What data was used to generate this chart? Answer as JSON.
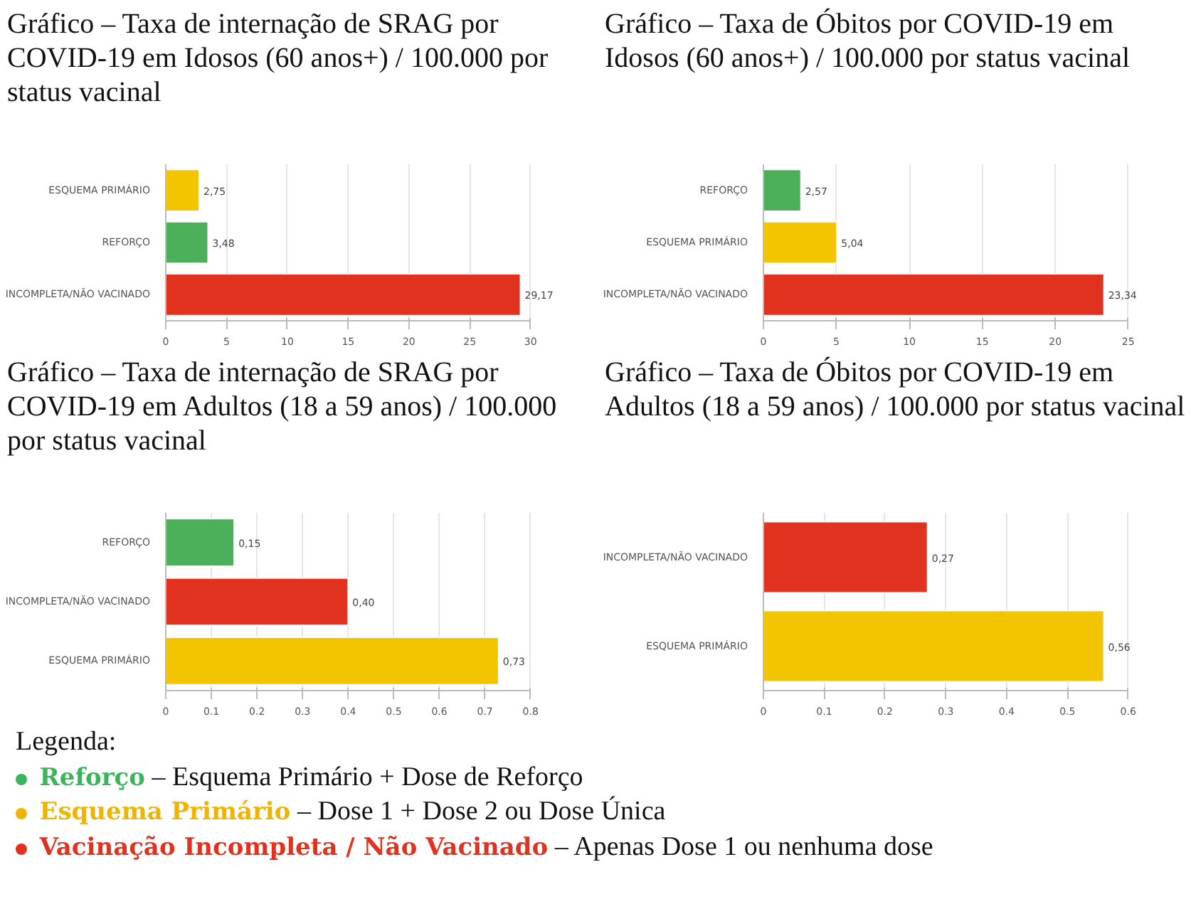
{
  "chart_data": [
    {
      "type": "bar",
      "orientation": "horizontal",
      "title": "Gráfico – Taxa de internação de SRAG por COVID-19 em Idosos (60 anos+) / 100.000 por status vacinal",
      "categories": [
        "ESQUEMA PRIMÁRIO",
        "REFORÇO",
        "INCOMPLETA/NÃO VACINADO"
      ],
      "values": [
        2.75,
        3.48,
        29.17
      ],
      "colors": [
        "#f2c500",
        "#4caf5a",
        "#e0321e"
      ],
      "value_labels": [
        "2,75",
        "3,48",
        "29,17"
      ],
      "xlim": [
        0,
        30
      ],
      "xticks": [
        0,
        5,
        10,
        15,
        20,
        25,
        30
      ],
      "grid": "x"
    },
    {
      "type": "bar",
      "orientation": "horizontal",
      "title": "Gráfico – Taxa de Óbitos por COVID-19 em Idosos (60 anos+) / 100.000 por status vacinal",
      "categories": [
        "REFORÇO",
        "ESQUEMA PRIMÁRIO",
        "INCOMPLETA/NÃO VACINADO"
      ],
      "values": [
        2.57,
        5.04,
        23.34
      ],
      "colors": [
        "#4caf5a",
        "#f2c500",
        "#e0321e"
      ],
      "value_labels": [
        "2,57",
        "5,04",
        "23,34"
      ],
      "xlim": [
        0,
        25
      ],
      "xticks": [
        0,
        5,
        10,
        15,
        20,
        25
      ],
      "grid": "x"
    },
    {
      "type": "bar",
      "orientation": "horizontal",
      "title": "Gráfico – Taxa de internação de SRAG por COVID-19 em Adultos (18 a 59 anos) / 100.000 por status vacinal",
      "categories": [
        "REFORÇO",
        "INCOMPLETA/NÃO VACINADO",
        "ESQUEMA PRIMÁRIO"
      ],
      "values": [
        0.15,
        0.4,
        0.73
      ],
      "colors": [
        "#4caf5a",
        "#e0321e",
        "#f2c500"
      ],
      "value_labels": [
        "0,15",
        "0,40",
        "0,73"
      ],
      "xlim": [
        0,
        0.8
      ],
      "xticks": [
        0,
        0.1,
        0.2,
        0.3,
        0.4,
        0.5,
        0.6,
        0.7,
        0.8
      ],
      "grid": "x"
    },
    {
      "type": "bar",
      "orientation": "horizontal",
      "title": "Gráfico – Taxa de Óbitos por COVID-19 em Adultos (18 a 59 anos) / 100.000 por status vacinal",
      "categories": [
        "INCOMPLETA/NÃO VACINADO",
        "ESQUEMA PRIMÁRIO"
      ],
      "values": [
        0.27,
        0.56
      ],
      "colors": [
        "#e0321e",
        "#f2c500"
      ],
      "value_labels": [
        "0,27",
        "0,56"
      ],
      "xlim": [
        0,
        0.6
      ],
      "xticks": [
        0,
        0.1,
        0.2,
        0.3,
        0.4,
        0.5,
        0.6
      ],
      "grid": "x"
    },
    {
      "type": "other",
      "title": "Legenda:",
      "categories": [
        "Reforço",
        "Esquema Primário",
        "Vacinação Incompleta / Não Vacinado"
      ],
      "colors": [
        "#3cb45a",
        "#f0b400",
        "#e0321e"
      ],
      "annotations": [
        "– Esquema Primário + Dose de Reforço",
        "– Dose 1 + Dose 2 ou Dose Única",
        "– Apenas Dose 1 ou nenhuma dose"
      ]
    }
  ]
}
